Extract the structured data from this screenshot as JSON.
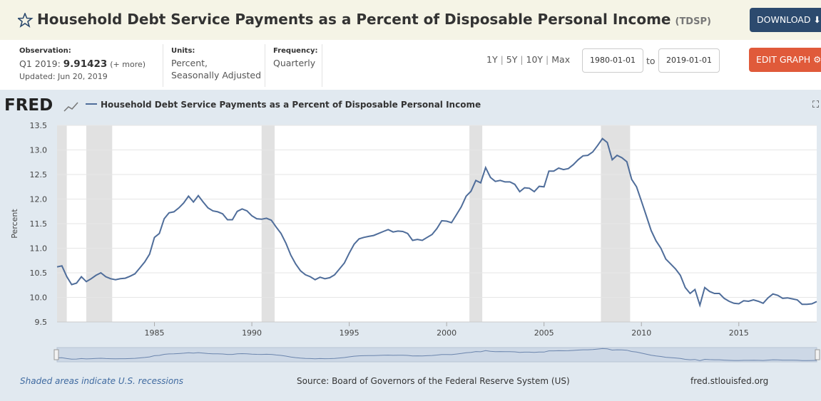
{
  "header": {
    "title": "Household Debt Service Payments as a Percent of Disposable Personal Income",
    "series_id": "(TDSP)",
    "download": "DOWNLOAD"
  },
  "info": {
    "observation_label": "Observation:",
    "observation_period": "Q1 2019:",
    "observation_value": 9.91423,
    "more": "(+ more)",
    "updated": "Updated: Jun 20, 2019",
    "units_label": "Units:",
    "units_1": "Percent,",
    "units_2": "Seasonally Adjusted",
    "frequency_label": "Frequency:",
    "frequency": "Quarterly",
    "ranges": [
      "1Y",
      "5Y",
      "10Y",
      "Max"
    ],
    "start_date": "1980-01-01",
    "to": "to",
    "end_date": "2019-01-01",
    "edit": "EDIT GRAPH"
  },
  "logo": "FRED",
  "footer": {
    "recessions_note": "Shaded areas indicate U.S. recessions",
    "source": "Source: Board of Governors of the Federal Reserve System (US)",
    "site": "fred.stlouisfed.org"
  },
  "chart_data": {
    "type": "line",
    "legend": "Household Debt Service Payments as a Percent of Disposable Personal Income",
    "ylabel": "Percent",
    "color": "#4f6d9a",
    "grid": true,
    "xlim": [
      1980,
      2019
    ],
    "xticks": [
      1985,
      1990,
      1995,
      2000,
      2005,
      2010,
      2015
    ],
    "ylim": [
      9.5,
      13.5
    ],
    "yticks": [
      9.5,
      {
        "value": 10,
        "label": "10.0"
      },
      10.5,
      {
        "value": 11,
        "label": "11.0"
      },
      11.5,
      {
        "value": 12,
        "label": "12.0"
      },
      12.5,
      {
        "value": 13,
        "label": "13.0"
      },
      13.5
    ],
    "recessions": [
      [
        1980,
        1980.5
      ],
      [
        1981.5,
        1982.83
      ],
      [
        1990.5,
        1991.17
      ],
      [
        2001.17,
        2001.83
      ],
      [
        2007.92,
        2009.42
      ]
    ],
    "x": [
      1980,
      1980.25,
      1980.5,
      1980.75,
      1981,
      1981.25,
      1981.5,
      1981.75,
      1982,
      1982.25,
      1982.5,
      1982.75,
      1983,
      1983.25,
      1983.5,
      1983.75,
      1984,
      1984.25,
      1984.5,
      1984.75,
      1985,
      1985.25,
      1985.5,
      1985.75,
      1986,
      1986.25,
      1986.5,
      1986.75,
      1987,
      1987.25,
      1987.5,
      1987.75,
      1988,
      1988.25,
      1988.5,
      1988.75,
      1989,
      1989.25,
      1989.5,
      1989.75,
      1990,
      1990.25,
      1990.5,
      1990.75,
      1991,
      1991.25,
      1991.5,
      1991.75,
      1992,
      1992.25,
      1992.5,
      1992.75,
      1993,
      1993.25,
      1993.5,
      1993.75,
      1994,
      1994.25,
      1994.5,
      1994.75,
      1995,
      1995.25,
      1995.5,
      1995.75,
      1996,
      1996.25,
      1996.5,
      1996.75,
      1997,
      1997.25,
      1997.5,
      1997.75,
      1998,
      1998.25,
      1998.5,
      1998.75,
      1999,
      1999.25,
      1999.5,
      1999.75,
      2000,
      2000.25,
      2000.5,
      2000.75,
      2001,
      2001.25,
      2001.5,
      2001.75,
      2002,
      2002.25,
      2002.5,
      2002.75,
      2003,
      2003.25,
      2003.5,
      2003.75,
      2004,
      2004.25,
      2004.5,
      2004.75,
      2005,
      2005.25,
      2005.5,
      2005.75,
      2006,
      2006.25,
      2006.5,
      2006.75,
      2007,
      2007.25,
      2007.5,
      2007.75,
      2008,
      2008.25,
      2008.5,
      2008.75,
      2009,
      2009.25,
      2009.5,
      2009.75,
      2010,
      2010.25,
      2010.5,
      2010.75,
      2011,
      2011.25,
      2011.5,
      2011.75,
      2012,
      2012.25,
      2012.5,
      2012.75,
      2013,
      2013.25,
      2013.5,
      2013.75,
      2014,
      2014.25,
      2014.5,
      2014.75,
      2015,
      2015.25,
      2015.5,
      2015.75,
      2016,
      2016.25,
      2016.5,
      2016.75,
      2017,
      2017.25,
      2017.5,
      2017.75,
      2018,
      2018.25,
      2018.5,
      2018.75,
      2019
    ],
    "values": [
      10.62,
      10.64,
      10.42,
      10.26,
      10.29,
      10.42,
      10.32,
      10.38,
      10.45,
      10.5,
      10.42,
      10.38,
      10.36,
      10.38,
      10.39,
      10.43,
      10.48,
      10.6,
      10.72,
      10.88,
      11.22,
      11.3,
      11.6,
      11.72,
      11.74,
      11.82,
      11.92,
      12.06,
      11.94,
      12.07,
      11.94,
      11.82,
      11.76,
      11.74,
      11.7,
      11.58,
      11.58,
      11.75,
      11.8,
      11.76,
      11.66,
      11.6,
      11.59,
      11.61,
      11.57,
      11.43,
      11.3,
      11.1,
      10.86,
      10.68,
      10.54,
      10.46,
      10.42,
      10.36,
      10.41,
      10.38,
      10.4,
      10.46,
      10.58,
      10.7,
      10.9,
      11.08,
      11.19,
      11.22,
      11.24,
      11.26,
      11.3,
      11.34,
      11.38,
      11.33,
      11.35,
      11.34,
      11.3,
      11.16,
      11.18,
      11.16,
      11.22,
      11.28,
      11.4,
      11.56,
      11.55,
      11.52,
      11.68,
      11.84,
      12.06,
      12.16,
      12.38,
      12.33,
      12.64,
      12.44,
      12.36,
      12.38,
      12.35,
      12.35,
      12.3,
      12.15,
      12.23,
      12.22,
      12.15,
      12.26,
      12.25,
      12.57,
      12.57,
      12.63,
      12.6,
      12.62,
      12.7,
      12.8,
      12.88,
      12.89,
      12.96,
      13.09,
      13.23,
      13.15,
      12.8,
      12.89,
      12.84,
      12.76,
      12.4,
      12.25,
      11.96,
      11.66,
      11.36,
      11.15,
      11,
      10.78,
      10.68,
      10.58,
      10.45,
      10.2,
      10.08,
      10.16,
      9.84,
      10.2,
      10.12,
      10.08,
      10.08,
      9.98,
      9.92,
      9.88,
      9.87,
      9.93,
      9.92,
      9.95,
      9.92,
      9.88,
      9.99,
      10.07,
      10.04,
      9.98,
      9.99,
      9.97,
      9.95,
      9.86,
      9.86,
      9.87,
      9.91423
    ]
  }
}
